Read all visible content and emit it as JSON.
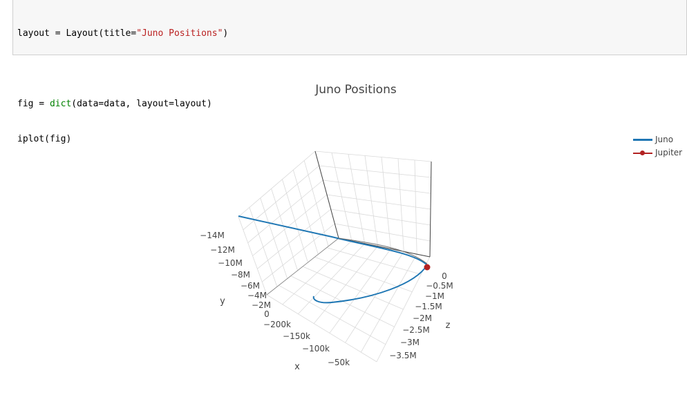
{
  "code_cell": {
    "lines": [
      {
        "pre": "layout = Layout(title=",
        "str": "\"Juno Positions\"",
        "post": ")"
      },
      {
        "pre": "",
        "str": "",
        "post": ""
      },
      {
        "pre": "fig = ",
        "builtin": "dict",
        "post": "(data=data, layout=layout)"
      },
      {
        "pre": "iplot(fig)",
        "str": "",
        "post": ""
      }
    ]
  },
  "colors": {
    "juno": "#1f77b4",
    "jupiter": "#b22222",
    "grid": "#d9d9d9",
    "axis": "#555555"
  },
  "chart_data": {
    "type": "scatter3d",
    "title": "Juno Positions",
    "axes": {
      "x": {
        "label": "x",
        "tick_labels": [
          "−200k",
          "−150k",
          "−100k",
          "−50k"
        ]
      },
      "y": {
        "label": "y",
        "tick_labels": [
          "0",
          "−2M",
          "−4M",
          "−6M",
          "−8M",
          "−10M",
          "−12M",
          "−14M"
        ]
      },
      "z": {
        "label": "z",
        "tick_labels": [
          "0",
          "−0.5M",
          "−1M",
          "−1.5M",
          "−2M",
          "−2.5M",
          "−3M",
          "−3.5M"
        ]
      }
    },
    "series": [
      {
        "name": "Juno",
        "mode": "lines"
      },
      {
        "name": "Jupiter",
        "mode": "lines+markers"
      }
    ],
    "legend_position": "top-right",
    "grid": true
  }
}
